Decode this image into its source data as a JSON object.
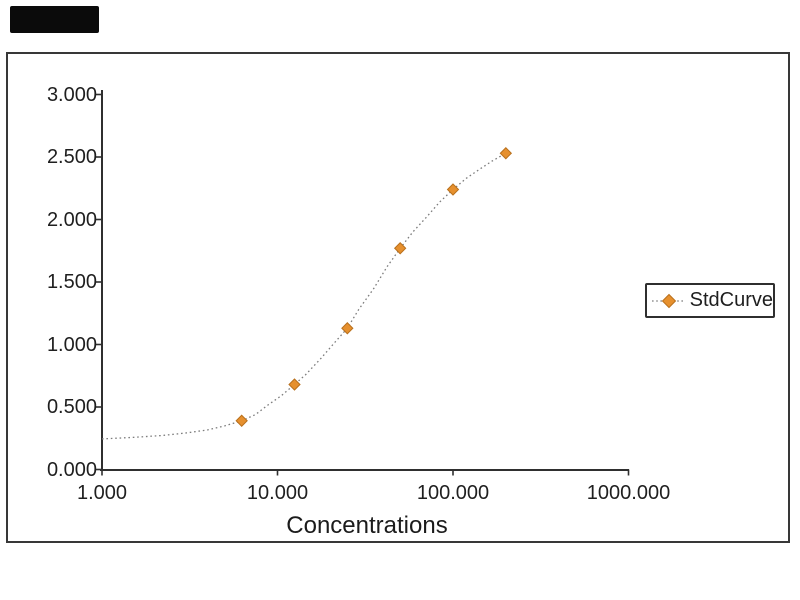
{
  "window": {
    "background_color": "#ffffff",
    "logo_redaction_bar_color": "#0b0b0b",
    "frame_color": "#383838"
  },
  "colors": {
    "axis": "#2f2f2f",
    "text": "#1f1f1f",
    "curve_line": "#7d7d7d",
    "marker_fill": "#E6902E",
    "marker_edge": "#b9701c"
  },
  "chart_data": {
    "type": "scatter",
    "title": "",
    "xlabel": "Concentrations",
    "ylabel": "",
    "x_scale": "log",
    "xlim": [
      1,
      1000
    ],
    "ylim": [
      0,
      3
    ],
    "grid": false,
    "x_ticks": {
      "values": [
        1,
        10,
        100,
        1000
      ],
      "labels": [
        "1.000",
        "10.000",
        "100.000",
        "1000.000"
      ]
    },
    "y_ticks": {
      "values": [
        0,
        0.5,
        1,
        1.5,
        2,
        2.5,
        3
      ],
      "labels": [
        "0.000",
        "0.500",
        "1.000",
        "1.500",
        "2.000",
        "2.500",
        "3.000"
      ]
    },
    "legend": {
      "position": "right-middle",
      "entries": [
        {
          "label": "StdCurve",
          "marker": "diamond",
          "line_style": "dotted"
        }
      ]
    },
    "series": [
      {
        "name": "StdCurve",
        "marker": "diamond",
        "marker_color": "#E6902E",
        "points": [
          {
            "concentration": 6.25,
            "od": 0.39
          },
          {
            "concentration": 12.5,
            "od": 0.68
          },
          {
            "concentration": 25,
            "od": 1.13
          },
          {
            "concentration": 50,
            "od": 1.77
          },
          {
            "concentration": 100,
            "od": 2.24
          },
          {
            "concentration": 200,
            "od": 2.53
          }
        ],
        "fit_curve": [
          [
            1,
            0.245
          ],
          [
            1.5,
            0.257
          ],
          [
            2.2,
            0.272
          ],
          [
            3,
            0.292
          ],
          [
            4,
            0.317
          ],
          [
            5,
            0.349
          ],
          [
            6.25,
            0.39
          ],
          [
            7.5,
            0.44
          ],
          [
            8.8,
            0.515
          ],
          [
            10.5,
            0.59
          ],
          [
            12.5,
            0.68
          ],
          [
            14.5,
            0.76
          ],
          [
            17.7,
            0.89
          ],
          [
            21,
            1.01
          ],
          [
            25,
            1.13
          ],
          [
            29,
            1.28
          ],
          [
            35.4,
            1.45
          ],
          [
            42,
            1.62
          ],
          [
            50,
            1.77
          ],
          [
            59,
            1.9
          ],
          [
            70.7,
            2.02
          ],
          [
            84,
            2.14
          ],
          [
            100,
            2.24
          ],
          [
            119,
            2.33
          ],
          [
            141,
            2.4
          ],
          [
            168,
            2.47
          ],
          [
            200,
            2.53
          ]
        ]
      }
    ]
  }
}
